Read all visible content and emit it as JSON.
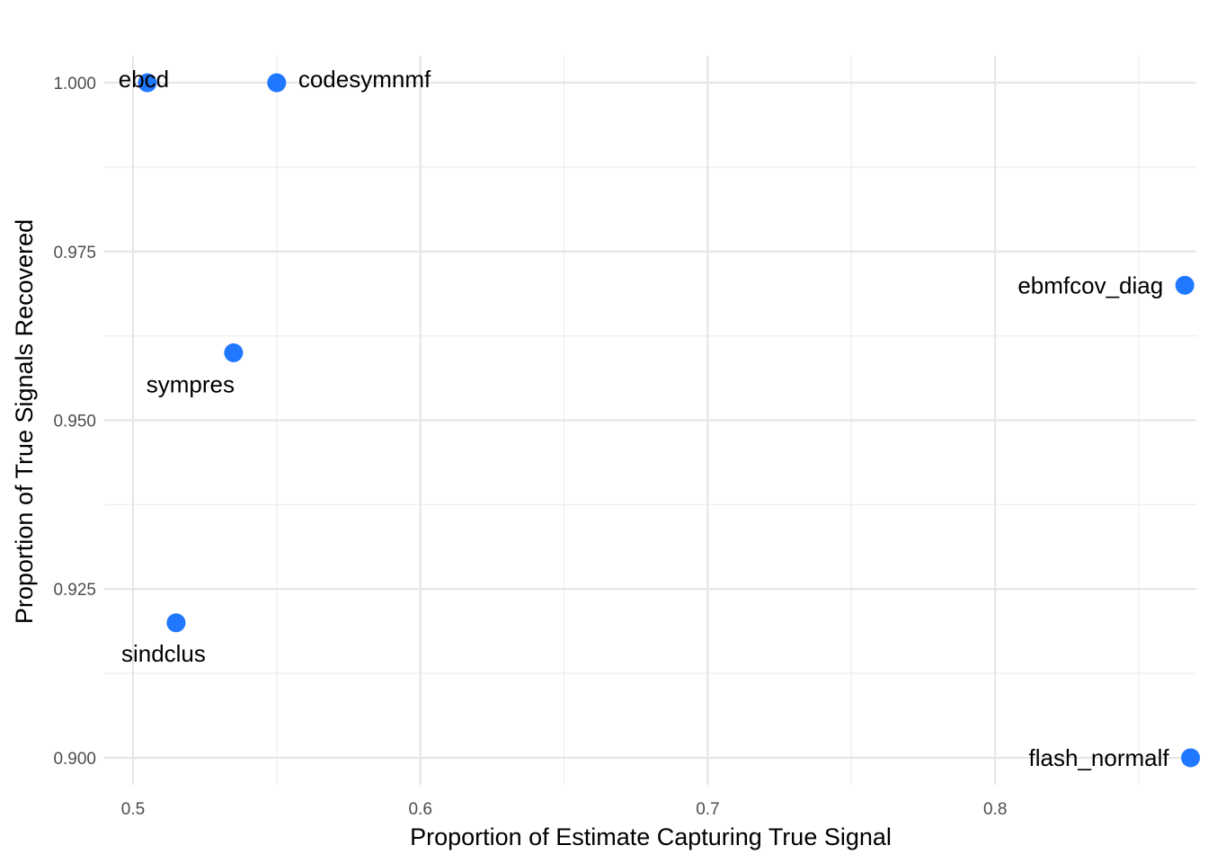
{
  "colors": {
    "point": "#1f78ff",
    "background": "#ffffff",
    "grid": "#e6e6e6"
  },
  "chart_data": {
    "type": "scatter",
    "title": "",
    "xlabel": "Proportion of Estimate Capturing True Signal",
    "ylabel": "Proportion of True Signals Recovered",
    "xlim": [
      0.49,
      0.87
    ],
    "ylim": [
      0.896,
      1.004
    ],
    "grid": true,
    "legend": "none",
    "x_ticks": [
      0.5,
      0.6,
      0.7,
      0.8
    ],
    "x_tick_labels": [
      "0.5",
      "0.6",
      "0.7",
      "0.8"
    ],
    "y_ticks": [
      0.9,
      0.925,
      0.95,
      0.975,
      1.0
    ],
    "y_tick_labels": [
      "0.900",
      "0.925",
      "0.950",
      "0.975",
      "1.000"
    ],
    "points": [
      {
        "label": "ebcd",
        "x": 0.505,
        "y": 1.0
      },
      {
        "label": "codesymnmf",
        "x": 0.55,
        "y": 1.0
      },
      {
        "label": "sympres",
        "x": 0.535,
        "y": 0.96
      },
      {
        "label": "sindclus",
        "x": 0.515,
        "y": 0.92
      },
      {
        "label": "ebmfcov_diag",
        "x": 0.866,
        "y": 0.97
      },
      {
        "label": "flash_normalf",
        "x": 0.868,
        "y": 0.9
      }
    ]
  }
}
